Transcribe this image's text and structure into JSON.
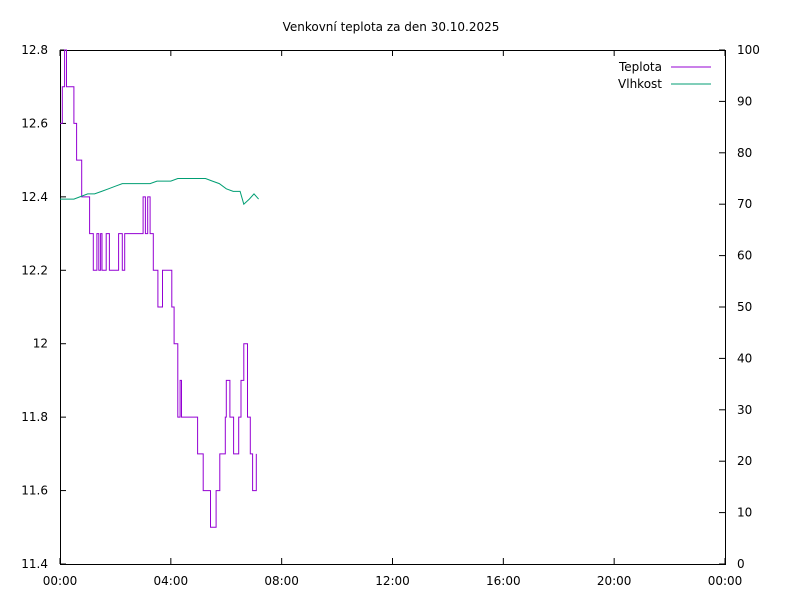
{
  "chart_data": {
    "type": "line",
    "title": "Venkovní teplota za den 30.10.2025",
    "x_unit": "time",
    "x_range": [
      "00:00",
      "24:00"
    ],
    "x_ticks": [
      "00:00",
      "04:00",
      "08:00",
      "12:00",
      "16:00",
      "20:00",
      "00:00"
    ],
    "y_left": {
      "range": [
        11.4,
        12.8
      ],
      "ticks": [
        "11.4",
        "11.6",
        "11.8",
        "12",
        "12.2",
        "12.4",
        "12.6",
        "12.8"
      ]
    },
    "y_right": {
      "range": [
        0,
        100
      ],
      "ticks": [
        "0",
        "10",
        "20",
        "30",
        "40",
        "50",
        "60",
        "70",
        "80",
        "90",
        "100"
      ]
    },
    "grid": false,
    "legend": "top-right",
    "series": [
      {
        "name": "Teplota",
        "axis": "left",
        "color": "#9400d3",
        "step": true,
        "points": [
          [
            "00:00",
            12.6
          ],
          [
            "00:05",
            12.7
          ],
          [
            "00:10",
            12.8
          ],
          [
            "00:14",
            12.7
          ],
          [
            "00:30",
            12.6
          ],
          [
            "00:36",
            12.5
          ],
          [
            "00:47",
            12.4
          ],
          [
            "01:04",
            12.3
          ],
          [
            "01:12",
            12.2
          ],
          [
            "01:20",
            12.3
          ],
          [
            "01:24",
            12.2
          ],
          [
            "01:28",
            12.3
          ],
          [
            "01:31",
            12.2
          ],
          [
            "01:40",
            12.3
          ],
          [
            "01:47",
            12.2
          ],
          [
            "02:07",
            12.3
          ],
          [
            "02:15",
            12.2
          ],
          [
            "02:20",
            12.3
          ],
          [
            "03:00",
            12.4
          ],
          [
            "03:05",
            12.3
          ],
          [
            "03:10",
            12.4
          ],
          [
            "03:15",
            12.3
          ],
          [
            "03:22",
            12.2
          ],
          [
            "03:32",
            12.1
          ],
          [
            "03:42",
            12.2
          ],
          [
            "04:02",
            12.1
          ],
          [
            "04:07",
            12.0
          ],
          [
            "04:15",
            11.8
          ],
          [
            "04:20",
            11.9
          ],
          [
            "04:23",
            11.8
          ],
          [
            "04:30",
            11.8
          ],
          [
            "04:58",
            11.7
          ],
          [
            "05:10",
            11.6
          ],
          [
            "05:26",
            11.5
          ],
          [
            "05:38",
            11.6
          ],
          [
            "05:46",
            11.7
          ],
          [
            "05:58",
            11.8
          ],
          [
            "06:00",
            11.9
          ],
          [
            "06:08",
            11.8
          ],
          [
            "06:16",
            11.7
          ],
          [
            "06:27",
            11.8
          ],
          [
            "06:32",
            11.9
          ],
          [
            "06:38",
            12.0
          ],
          [
            "06:46",
            11.8
          ],
          [
            "06:52",
            11.7
          ],
          [
            "06:57",
            11.6
          ],
          [
            "07:05",
            11.7
          ]
        ]
      },
      {
        "name": "Vlhkost",
        "axis": "right",
        "color": "#009e73",
        "step": false,
        "points": [
          [
            "00:00",
            71
          ],
          [
            "00:15",
            71
          ],
          [
            "00:30",
            71
          ],
          [
            "00:45",
            71.5
          ],
          [
            "01:00",
            72
          ],
          [
            "01:15",
            72
          ],
          [
            "01:30",
            72.5
          ],
          [
            "01:45",
            73
          ],
          [
            "02:00",
            73.5
          ],
          [
            "02:15",
            74
          ],
          [
            "02:30",
            74
          ],
          [
            "02:45",
            74
          ],
          [
            "03:00",
            74
          ],
          [
            "03:15",
            74
          ],
          [
            "03:30",
            74.5
          ],
          [
            "03:45",
            74.5
          ],
          [
            "04:00",
            74.5
          ],
          [
            "04:15",
            75
          ],
          [
            "04:30",
            75
          ],
          [
            "04:45",
            75
          ],
          [
            "05:00",
            75
          ],
          [
            "05:15",
            75
          ],
          [
            "05:30",
            74.5
          ],
          [
            "05:45",
            74
          ],
          [
            "06:00",
            73
          ],
          [
            "06:15",
            72.5
          ],
          [
            "06:30",
            72.5
          ],
          [
            "06:38",
            70
          ],
          [
            "06:50",
            71
          ],
          [
            "07:00",
            72
          ],
          [
            "07:10",
            71
          ]
        ]
      }
    ]
  }
}
